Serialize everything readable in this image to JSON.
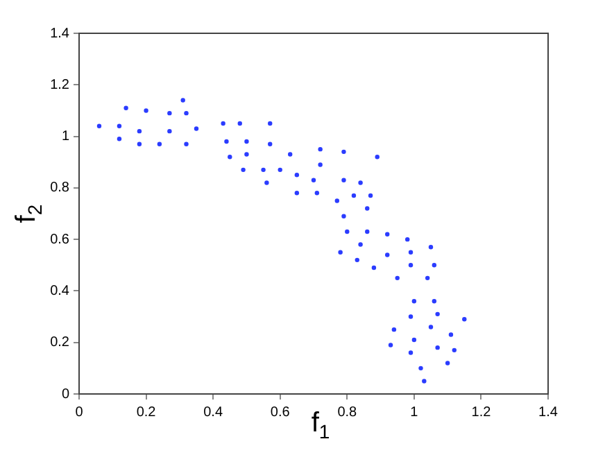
{
  "chart_data": {
    "type": "scatter",
    "xlabel": "f$_{1}$",
    "ylabel": "f$_{2}$",
    "xlim": [
      0,
      1.4
    ],
    "ylim": [
      0,
      1.4
    ],
    "xticks": [
      0,
      0.2,
      0.4,
      0.6,
      0.8,
      1,
      1.2,
      1.4
    ],
    "yticks": [
      0,
      0.2,
      0.4,
      0.6,
      0.8,
      1,
      1.2,
      1.4
    ],
    "grid": false,
    "legend": false,
    "marker": "circle",
    "series": [
      {
        "color": "#2b3cff",
        "x": [
          0.06,
          0.12,
          0.12,
          0.14,
          0.18,
          0.18,
          0.2,
          0.24,
          0.27,
          0.27,
          0.31,
          0.32,
          0.32,
          0.35,
          0.43,
          0.44,
          0.45,
          0.48,
          0.5,
          0.5,
          0.49,
          0.55,
          0.56,
          0.57,
          0.57,
          0.6,
          0.63,
          0.65,
          0.65,
          0.7,
          0.71,
          0.72,
          0.72,
          0.77,
          0.79,
          0.89,
          0.79,
          0.84,
          0.82,
          0.87,
          0.86,
          0.79,
          0.8,
          0.86,
          0.92,
          0.98,
          1.05,
          0.78,
          0.84,
          0.92,
          0.99,
          0.83,
          0.88,
          0.99,
          1.06,
          0.95,
          1.04,
          1.0,
          1.06,
          0.99,
          1.07,
          1.15,
          0.94,
          1.05,
          1.0,
          1.11,
          0.93,
          1.07,
          1.12,
          0.99,
          1.1,
          1.02,
          1.03
        ],
        "values": [
          1.04,
          1.04,
          0.99,
          1.11,
          1.02,
          0.97,
          1.1,
          0.97,
          1.09,
          1.02,
          1.14,
          1.09,
          0.97,
          1.03,
          1.05,
          0.98,
          0.92,
          1.05,
          0.98,
          0.93,
          0.87,
          0.87,
          0.82,
          1.05,
          0.97,
          0.87,
          0.93,
          0.85,
          0.78,
          0.83,
          0.78,
          0.95,
          0.89,
          0.75,
          0.94,
          0.92,
          0.83,
          0.82,
          0.77,
          0.77,
          0.72,
          0.69,
          0.63,
          0.63,
          0.62,
          0.6,
          0.57,
          0.55,
          0.58,
          0.54,
          0.55,
          0.52,
          0.49,
          0.5,
          0.5,
          0.45,
          0.45,
          0.36,
          0.36,
          0.3,
          0.31,
          0.29,
          0.25,
          0.26,
          0.21,
          0.23,
          0.19,
          0.18,
          0.17,
          0.16,
          0.12,
          0.1,
          0.05
        ]
      }
    ]
  }
}
